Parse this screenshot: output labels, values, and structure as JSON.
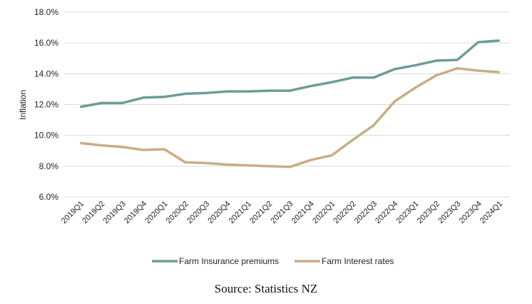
{
  "chart_data": {
    "type": "line",
    "ylabel": "Inflation",
    "xlabel": "",
    "ylim": [
      6.0,
      18.0
    ],
    "yticks": [
      "6.0%",
      "8.0%",
      "10.0%",
      "12.0%",
      "14.0%",
      "16.0%",
      "18.0%"
    ],
    "ytick_values": [
      6,
      8,
      10,
      12,
      14,
      16,
      18
    ],
    "grid": true,
    "legend_position": "bottom",
    "categories": [
      "2019Q1",
      "2019Q2",
      "2019Q3",
      "2019Q4",
      "2020Q1",
      "2020Q2",
      "2020Q3",
      "2020Q4",
      "2021Q1",
      "2021Q2",
      "2021Q3",
      "2021Q4",
      "2022Q1",
      "2022Q2",
      "2022Q3",
      "2022Q4",
      "2023Q1",
      "2023Q2",
      "2023Q3",
      "2023Q4",
      "2024Q1"
    ],
    "series": [
      {
        "name": "Farm Insurance premiums",
        "color": "#6a9e96",
        "values": [
          11.85,
          12.1,
          12.1,
          12.45,
          12.5,
          12.7,
          12.75,
          12.85,
          12.85,
          12.9,
          12.9,
          13.2,
          13.45,
          13.75,
          13.75,
          14.3,
          14.55,
          14.85,
          14.9,
          16.05,
          16.15
        ]
      },
      {
        "name": "Farm Interest rates",
        "color": "#c8ad84",
        "values": [
          9.5,
          9.35,
          9.25,
          9.05,
          9.1,
          8.25,
          8.2,
          8.1,
          8.05,
          8.0,
          7.95,
          8.4,
          8.7,
          9.7,
          10.65,
          12.2,
          13.1,
          13.9,
          14.35,
          14.2,
          14.1
        ]
      }
    ]
  },
  "source": "Source: Statistics NZ"
}
